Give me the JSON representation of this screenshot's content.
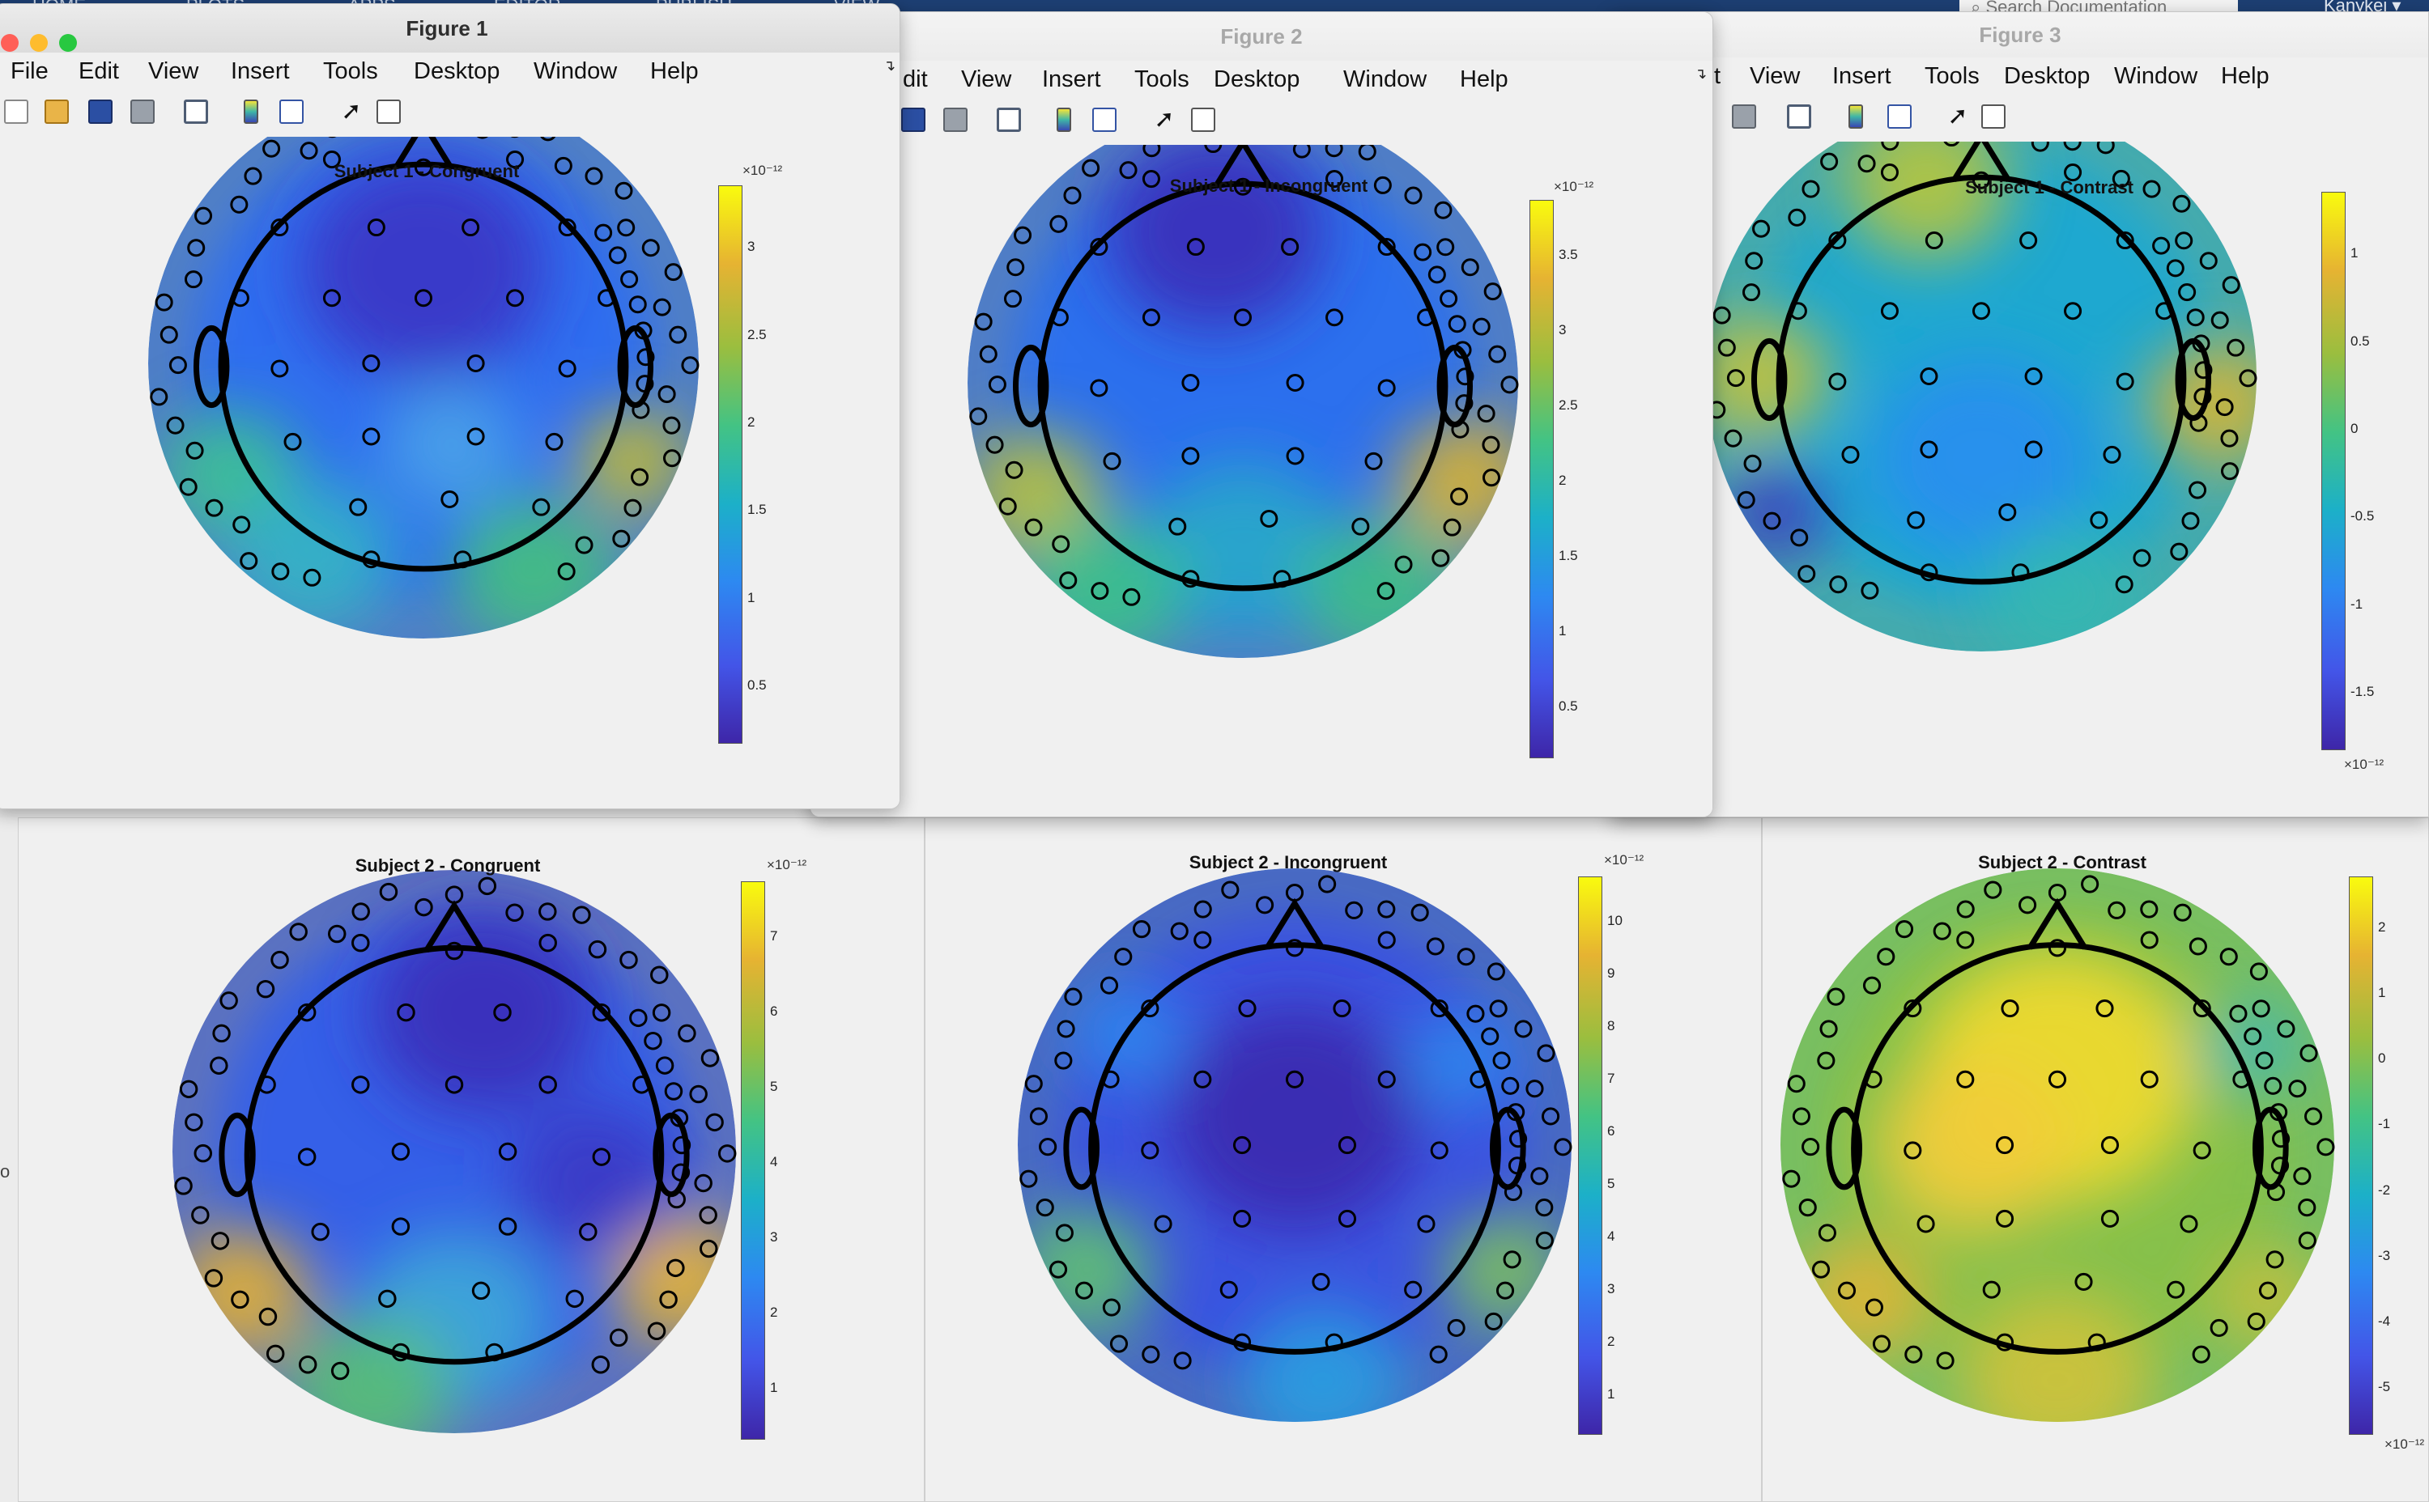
{
  "background": {
    "strip_labels": [
      "HOME",
      "PLOTS",
      "APPS",
      "EDITOR",
      "PUBLISH",
      "VIEW"
    ],
    "search_placeholder": "Search Documentation",
    "user_name": "Kanykei",
    "left_edge_text": "o"
  },
  "menu_labels": [
    "File",
    "Edit",
    "View",
    "Insert",
    "Tools",
    "Desktop",
    "Window",
    "Help"
  ],
  "figure_titles": [
    "Figure 1",
    "Figure 2",
    "Figure 3"
  ],
  "partial_menu": {
    "figure2_edit": "dit",
    "figure3_edit": "t"
  },
  "toolbar_icons": [
    "new-figure-icon",
    "open-file-icon",
    "save-icon",
    "print-icon",
    "print-preview-icon",
    "colorbar-icon",
    "legend-icon",
    "pointer-icon",
    "property-panel-icon"
  ],
  "traffic_light_colors": [
    "#ff5f57",
    "#febc2e",
    "#28c840"
  ],
  "colormap": "parula",
  "plots": [
    {
      "title": "Subject 1 - Congruent",
      "exponent_label": "×10⁻¹²",
      "ticks": [
        "3",
        "2.5",
        "2",
        "1.5",
        "1",
        "0.5"
      ]
    },
    {
      "title": "Subject 1 - Incongruent",
      "exponent_label": "×10⁻¹²",
      "ticks": [
        "3.5",
        "3",
        "2.5",
        "2",
        "1.5",
        "1",
        "0.5"
      ]
    },
    {
      "title": "Subject 1 - Contrast",
      "exponent_label": "×10⁻¹²",
      "ticks": [
        "1",
        "0.5",
        "0",
        "-0.5",
        "-1",
        "-1.5"
      ]
    },
    {
      "title": "Subject 2 - Congruent",
      "exponent_label": "×10⁻¹²",
      "ticks": [
        "7",
        "6",
        "5",
        "4",
        "3",
        "2",
        "1"
      ]
    },
    {
      "title": "Subject 2 - Incongruent",
      "exponent_label": "×10⁻¹²",
      "ticks": [
        "10",
        "9",
        "8",
        "7",
        "6",
        "5",
        "4",
        "3",
        "2",
        "1"
      ]
    },
    {
      "title": "Subject 2 - Contrast",
      "exponent_label": "×10⁻¹²",
      "ticks": [
        "2",
        "1",
        "0",
        "-1",
        "-2",
        "-3",
        "-4",
        "-5"
      ]
    }
  ]
}
